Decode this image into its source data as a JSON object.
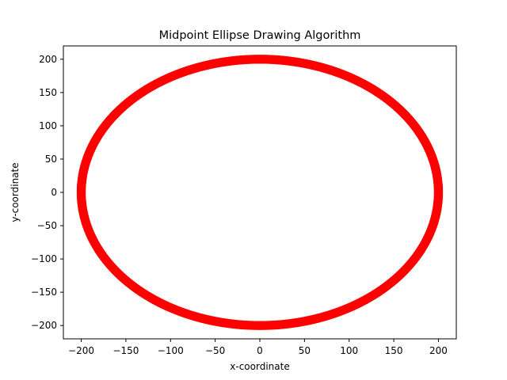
{
  "chart_data": {
    "type": "scatter",
    "title": "Midpoint Ellipse Drawing Algorithm",
    "xlabel": "x-coordinate",
    "ylabel": "y-coordinate",
    "xlim": [
      -220,
      220
    ],
    "ylim": [
      -220,
      220
    ],
    "xticks": [
      -200,
      -150,
      -100,
      -50,
      0,
      50,
      100,
      150,
      200
    ],
    "yticks": [
      -200,
      -150,
      -100,
      -50,
      0,
      50,
      100,
      150,
      200
    ],
    "xtick_labels": [
      "−200",
      "−150",
      "−100",
      "−50",
      "0",
      "50",
      "100",
      "150",
      "200"
    ],
    "ytick_labels": [
      "−200",
      "−150",
      "−100",
      "−50",
      "0",
      "50",
      "100",
      "150",
      "200"
    ],
    "grid": false,
    "series": [
      {
        "shape": "ellipse",
        "center": [
          0,
          0
        ],
        "rx": 200,
        "ry": 200,
        "color": "#ff0000",
        "marker": "circle"
      }
    ]
  }
}
